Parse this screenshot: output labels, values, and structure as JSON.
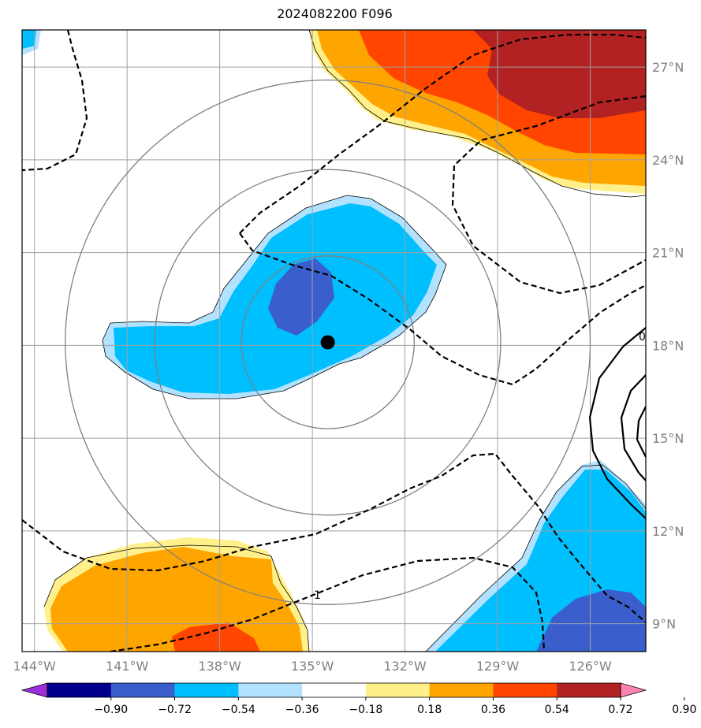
{
  "chart_data": {
    "type": "heatmap",
    "title": "2024082200 F096",
    "x_ticks": [
      "144°W",
      "141°W",
      "138°W",
      "135°W",
      "132°W",
      "129°W",
      "126°W"
    ],
    "y_ticks": [
      "27°N",
      "24°N",
      "21°N",
      "18°N",
      "15°N",
      "12°N",
      "9°N"
    ],
    "lon_range": [
      -144.4,
      -124.2
    ],
    "lat_range": [
      8.1,
      28.2
    ],
    "grid": true,
    "center_marker": {
      "lon": -134.5,
      "lat": 18.1
    },
    "range_rings_deg": [
      2.8,
      5.6,
      8.5
    ],
    "colorbar": {
      "labels": [
        "−0.90",
        "−0.72",
        "−0.54",
        "−0.36",
        "−0.18",
        "0.18",
        "0.36",
        "0.54",
        "0.72",
        "0.90"
      ],
      "colors": [
        "#9b30d9",
        "#00008b",
        "#3a5fcd",
        "#00bfff",
        "#b2e2ff",
        "#ffffff",
        "#fff08c",
        "#ffa500",
        "#ff4500",
        "#b22222",
        "#ff83b0"
      ]
    },
    "contour_labels": [
      "1",
      "0"
    ]
  }
}
